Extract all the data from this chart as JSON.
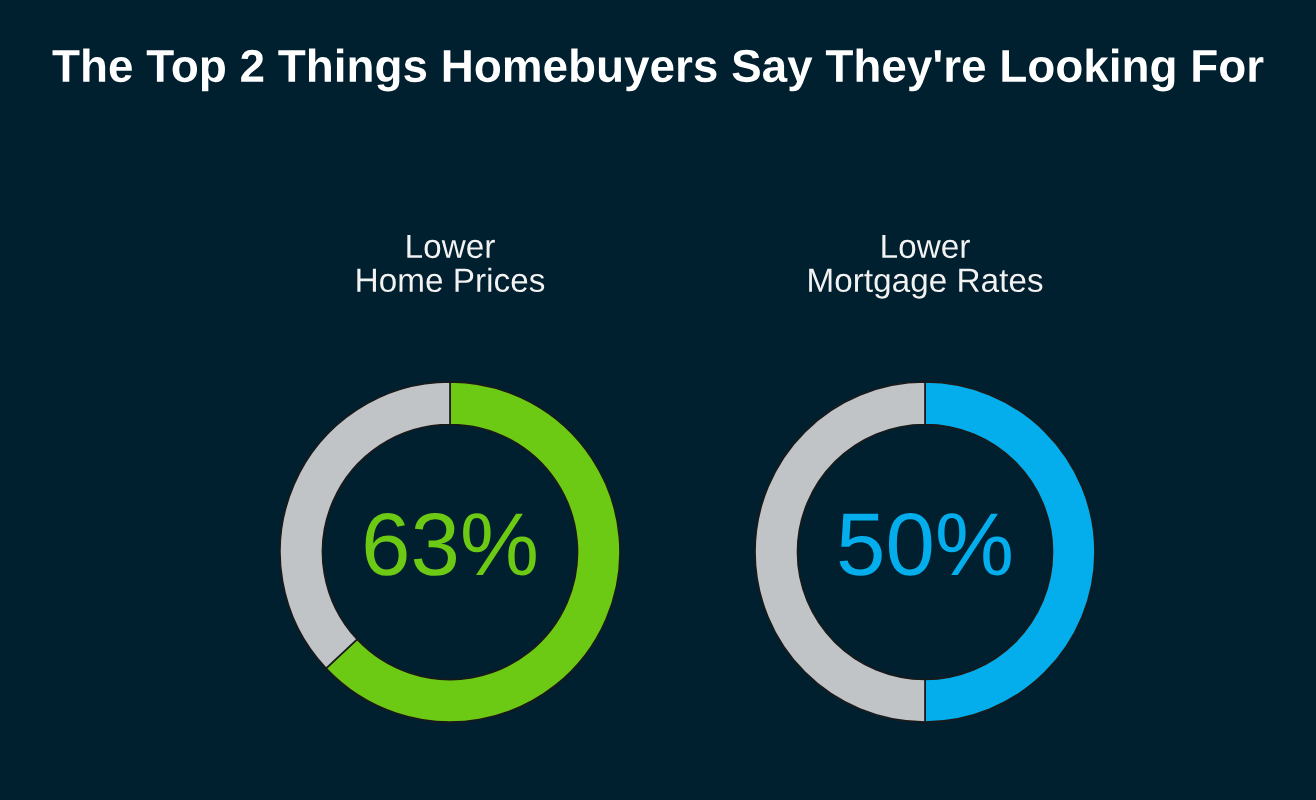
{
  "chart_data": [
    {
      "type": "other",
      "title": "The Top 2 Things Homebuyers Say They're Looking For"
    },
    {
      "type": "donut",
      "title": "Lower\nHome Prices",
      "categories": [
        null,
        null
      ],
      "values": [
        63,
        37
      ],
      "colors": [
        "#6cc914",
        "#c1c4c6"
      ],
      "value_labels": [
        "63%",
        null
      ]
    },
    {
      "type": "donut",
      "title": "Lower\nMortgage Rates",
      "categories": [
        null,
        null
      ],
      "values": [
        50,
        50
      ],
      "colors": [
        "#04adec",
        "#c1c4c6"
      ],
      "value_labels": [
        "50%",
        null
      ]
    }
  ]
}
